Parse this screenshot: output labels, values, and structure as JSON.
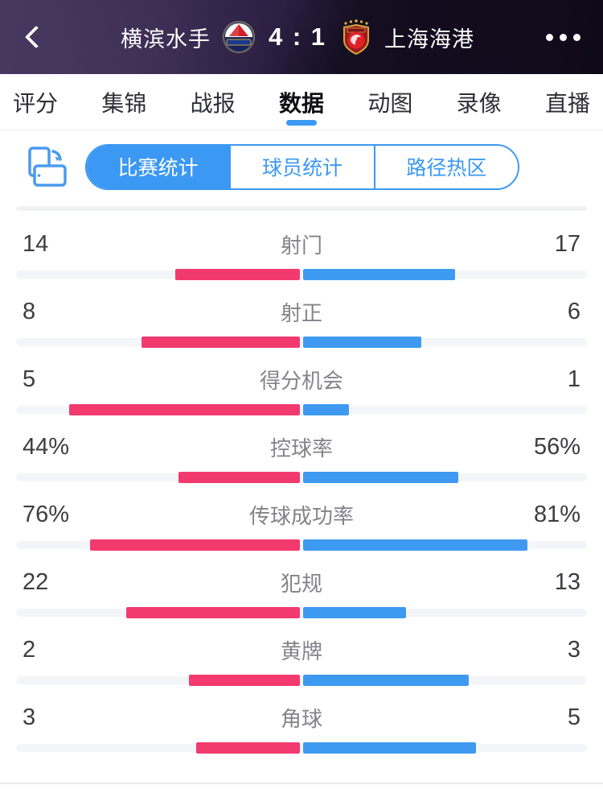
{
  "colors": {
    "accent_blue": "#3b98f3",
    "home_bar": "#f23a6e",
    "away_bar": "#3e9af0",
    "header_purple": "#3c2c54"
  },
  "header": {
    "home_team": "横滨水手",
    "away_team": "上海海港",
    "score": "4 : 1"
  },
  "tabs": [
    {
      "label": "评分",
      "active": false
    },
    {
      "label": "集锦",
      "active": false
    },
    {
      "label": "战报",
      "active": false
    },
    {
      "label": "数据",
      "active": true
    },
    {
      "label": "动图",
      "active": false
    },
    {
      "label": "录像",
      "active": false
    },
    {
      "label": "直播",
      "active": false
    }
  ],
  "subtabs": [
    {
      "label": "比赛统计",
      "active": true
    },
    {
      "label": "球员统计",
      "active": false
    },
    {
      "label": "路径热区",
      "active": false
    }
  ],
  "stats": {
    "rows": [
      {
        "label": "射门",
        "home_display": "14",
        "away_display": "17",
        "home_value": 14,
        "away_value": 17,
        "percent": false
      },
      {
        "label": "射正",
        "home_display": "8",
        "away_display": "6",
        "home_value": 8,
        "away_value": 6,
        "percent": false
      },
      {
        "label": "得分机会",
        "home_display": "5",
        "away_display": "1",
        "home_value": 5,
        "away_value": 1,
        "percent": false
      },
      {
        "label": "控球率",
        "home_display": "44%",
        "away_display": "56%",
        "home_value": 44,
        "away_value": 56,
        "percent": true
      },
      {
        "label": "传球成功率",
        "home_display": "76%",
        "away_display": "81%",
        "home_value": 76,
        "away_value": 81,
        "percent": true
      },
      {
        "label": "犯规",
        "home_display": "22",
        "away_display": "13",
        "home_value": 22,
        "away_value": 13,
        "percent": false
      },
      {
        "label": "黄牌",
        "home_display": "2",
        "away_display": "3",
        "home_value": 2,
        "away_value": 3,
        "percent": false
      },
      {
        "label": "角球",
        "home_display": "3",
        "away_display": "5",
        "home_value": 3,
        "away_value": 5,
        "percent": false
      }
    ]
  },
  "chart_data": {
    "type": "bar",
    "orientation": "horizontal-diverging",
    "categories": [
      "射门",
      "射正",
      "得分机会",
      "控球率",
      "传球成功率",
      "犯规",
      "黄牌",
      "角球"
    ],
    "series": [
      {
        "name": "横滨水手",
        "values": [
          14,
          8,
          5,
          44,
          76,
          22,
          2,
          3
        ],
        "color": "#f23a6e"
      },
      {
        "name": "上海海港",
        "values": [
          17,
          6,
          1,
          56,
          81,
          13,
          3,
          5
        ],
        "color": "#3e9af0"
      }
    ],
    "percent_rows": [
      "控球率",
      "传球成功率"
    ],
    "title": "比赛统计 横滨水手 4:1 上海海港"
  }
}
